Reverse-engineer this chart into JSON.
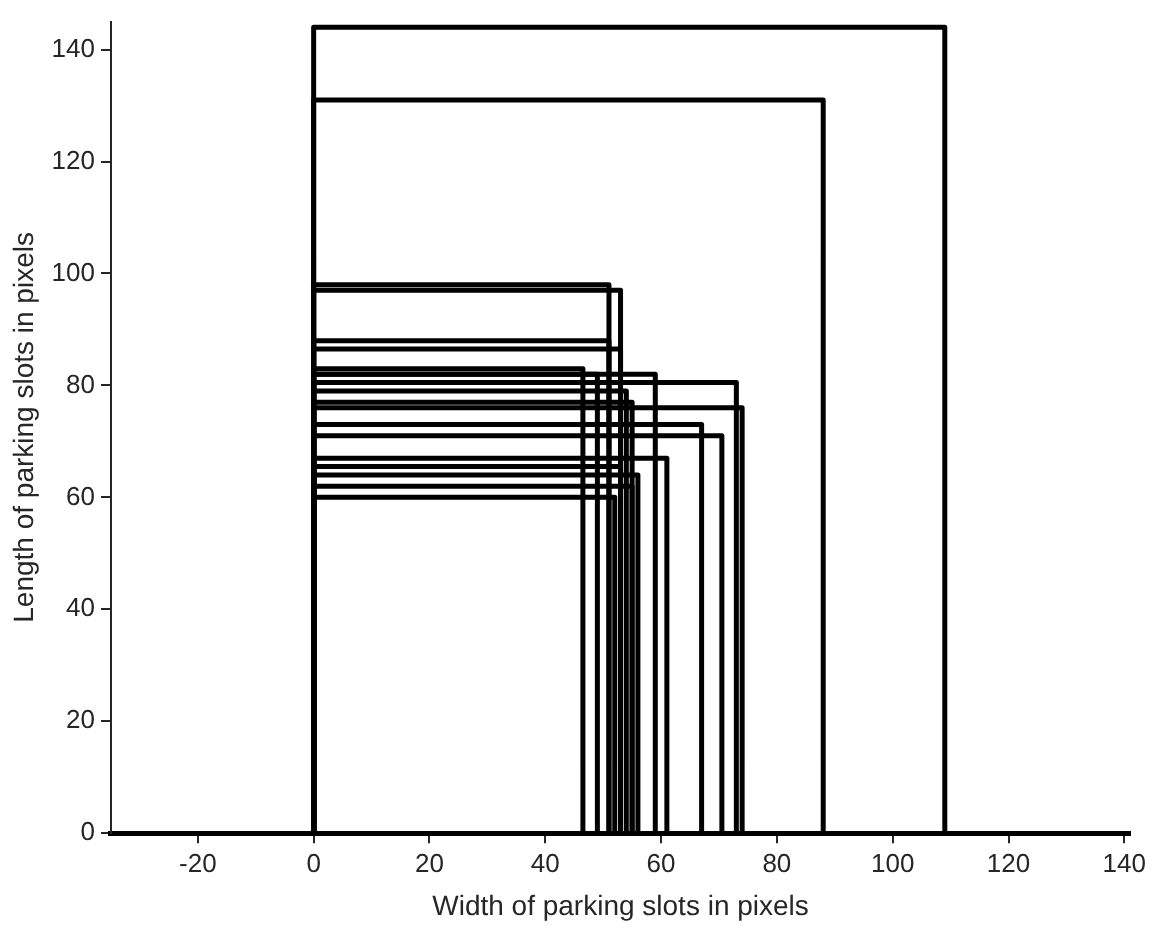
{
  "chart_data": {
    "type": "line",
    "xlabel": "Width of parking slots in pixels",
    "ylabel": "Length of parking slots in pixels",
    "xlim": [
      -35,
      141
    ],
    "ylim": [
      0,
      145
    ],
    "xticks": [
      -20,
      0,
      20,
      40,
      60,
      80,
      100,
      120,
      140
    ],
    "yticks": [
      0,
      20,
      40,
      60,
      80,
      100,
      120,
      140
    ],
    "grid": false,
    "legend": false,
    "marker": "none",
    "line_style": "solid",
    "series": [
      {
        "color": "#000000",
        "x": [
          0,
          0,
          109,
          109
        ],
        "values": [
          0,
          144,
          144,
          0
        ]
      },
      {
        "color": "#000000",
        "x": [
          0,
          0,
          88,
          88
        ],
        "values": [
          0,
          131,
          131,
          0
        ]
      },
      {
        "color": "#000000",
        "x": [
          0,
          0,
          51,
          51
        ],
        "values": [
          0,
          98,
          98,
          0
        ]
      },
      {
        "color": "#000000",
        "x": [
          0,
          0,
          53,
          53
        ],
        "values": [
          0,
          97,
          97,
          0
        ]
      },
      {
        "color": "#000000",
        "x": [
          0,
          0,
          51,
          51
        ],
        "values": [
          0,
          88,
          88,
          0
        ]
      },
      {
        "color": "#000000",
        "x": [
          0,
          0,
          53,
          53
        ],
        "values": [
          0,
          86.5,
          86.5,
          0
        ]
      },
      {
        "color": "#000000",
        "x": [
          0,
          0,
          46.5,
          46.5
        ],
        "values": [
          0,
          83,
          83,
          0
        ]
      },
      {
        "color": "#000000",
        "x": [
          0,
          0,
          49,
          49
        ],
        "values": [
          0,
          82,
          82,
          0
        ]
      },
      {
        "color": "#000000",
        "x": [
          0,
          0,
          59,
          59
        ],
        "values": [
          0,
          82,
          82,
          0
        ]
      },
      {
        "color": "#000000",
        "x": [
          0,
          0,
          73,
          73
        ],
        "values": [
          0,
          80.5,
          80.5,
          0
        ]
      },
      {
        "color": "#000000",
        "x": [
          0,
          0,
          54,
          54
        ],
        "values": [
          0,
          79,
          79,
          0
        ]
      },
      {
        "color": "#000000",
        "x": [
          0,
          0,
          55,
          55
        ],
        "values": [
          0,
          77,
          77,
          0
        ]
      },
      {
        "color": "#000000",
        "x": [
          0,
          0,
          74,
          74
        ],
        "values": [
          0,
          76,
          76,
          0
        ]
      },
      {
        "color": "#000000",
        "x": [
          0,
          0,
          67,
          67
        ],
        "values": [
          0,
          73,
          73,
          0
        ]
      },
      {
        "color": "#000000",
        "x": [
          0,
          0,
          70.5,
          70.5
        ],
        "values": [
          0,
          71,
          71,
          0
        ]
      },
      {
        "color": "#000000",
        "x": [
          0,
          0,
          61,
          61
        ],
        "values": [
          0,
          67,
          67,
          0
        ]
      },
      {
        "color": "#000000",
        "x": [
          0,
          0,
          53,
          53
        ],
        "values": [
          0,
          65.5,
          65.5,
          0
        ]
      },
      {
        "color": "#000000",
        "x": [
          0,
          0,
          56,
          56
        ],
        "values": [
          0,
          64,
          64,
          0
        ]
      },
      {
        "color": "#000000",
        "x": [
          0,
          0,
          55,
          55
        ],
        "values": [
          0,
          62,
          62,
          0
        ]
      },
      {
        "color": "#000000",
        "x": [
          0,
          0,
          52,
          52
        ],
        "values": [
          0,
          60,
          60,
          0
        ]
      }
    ]
  }
}
